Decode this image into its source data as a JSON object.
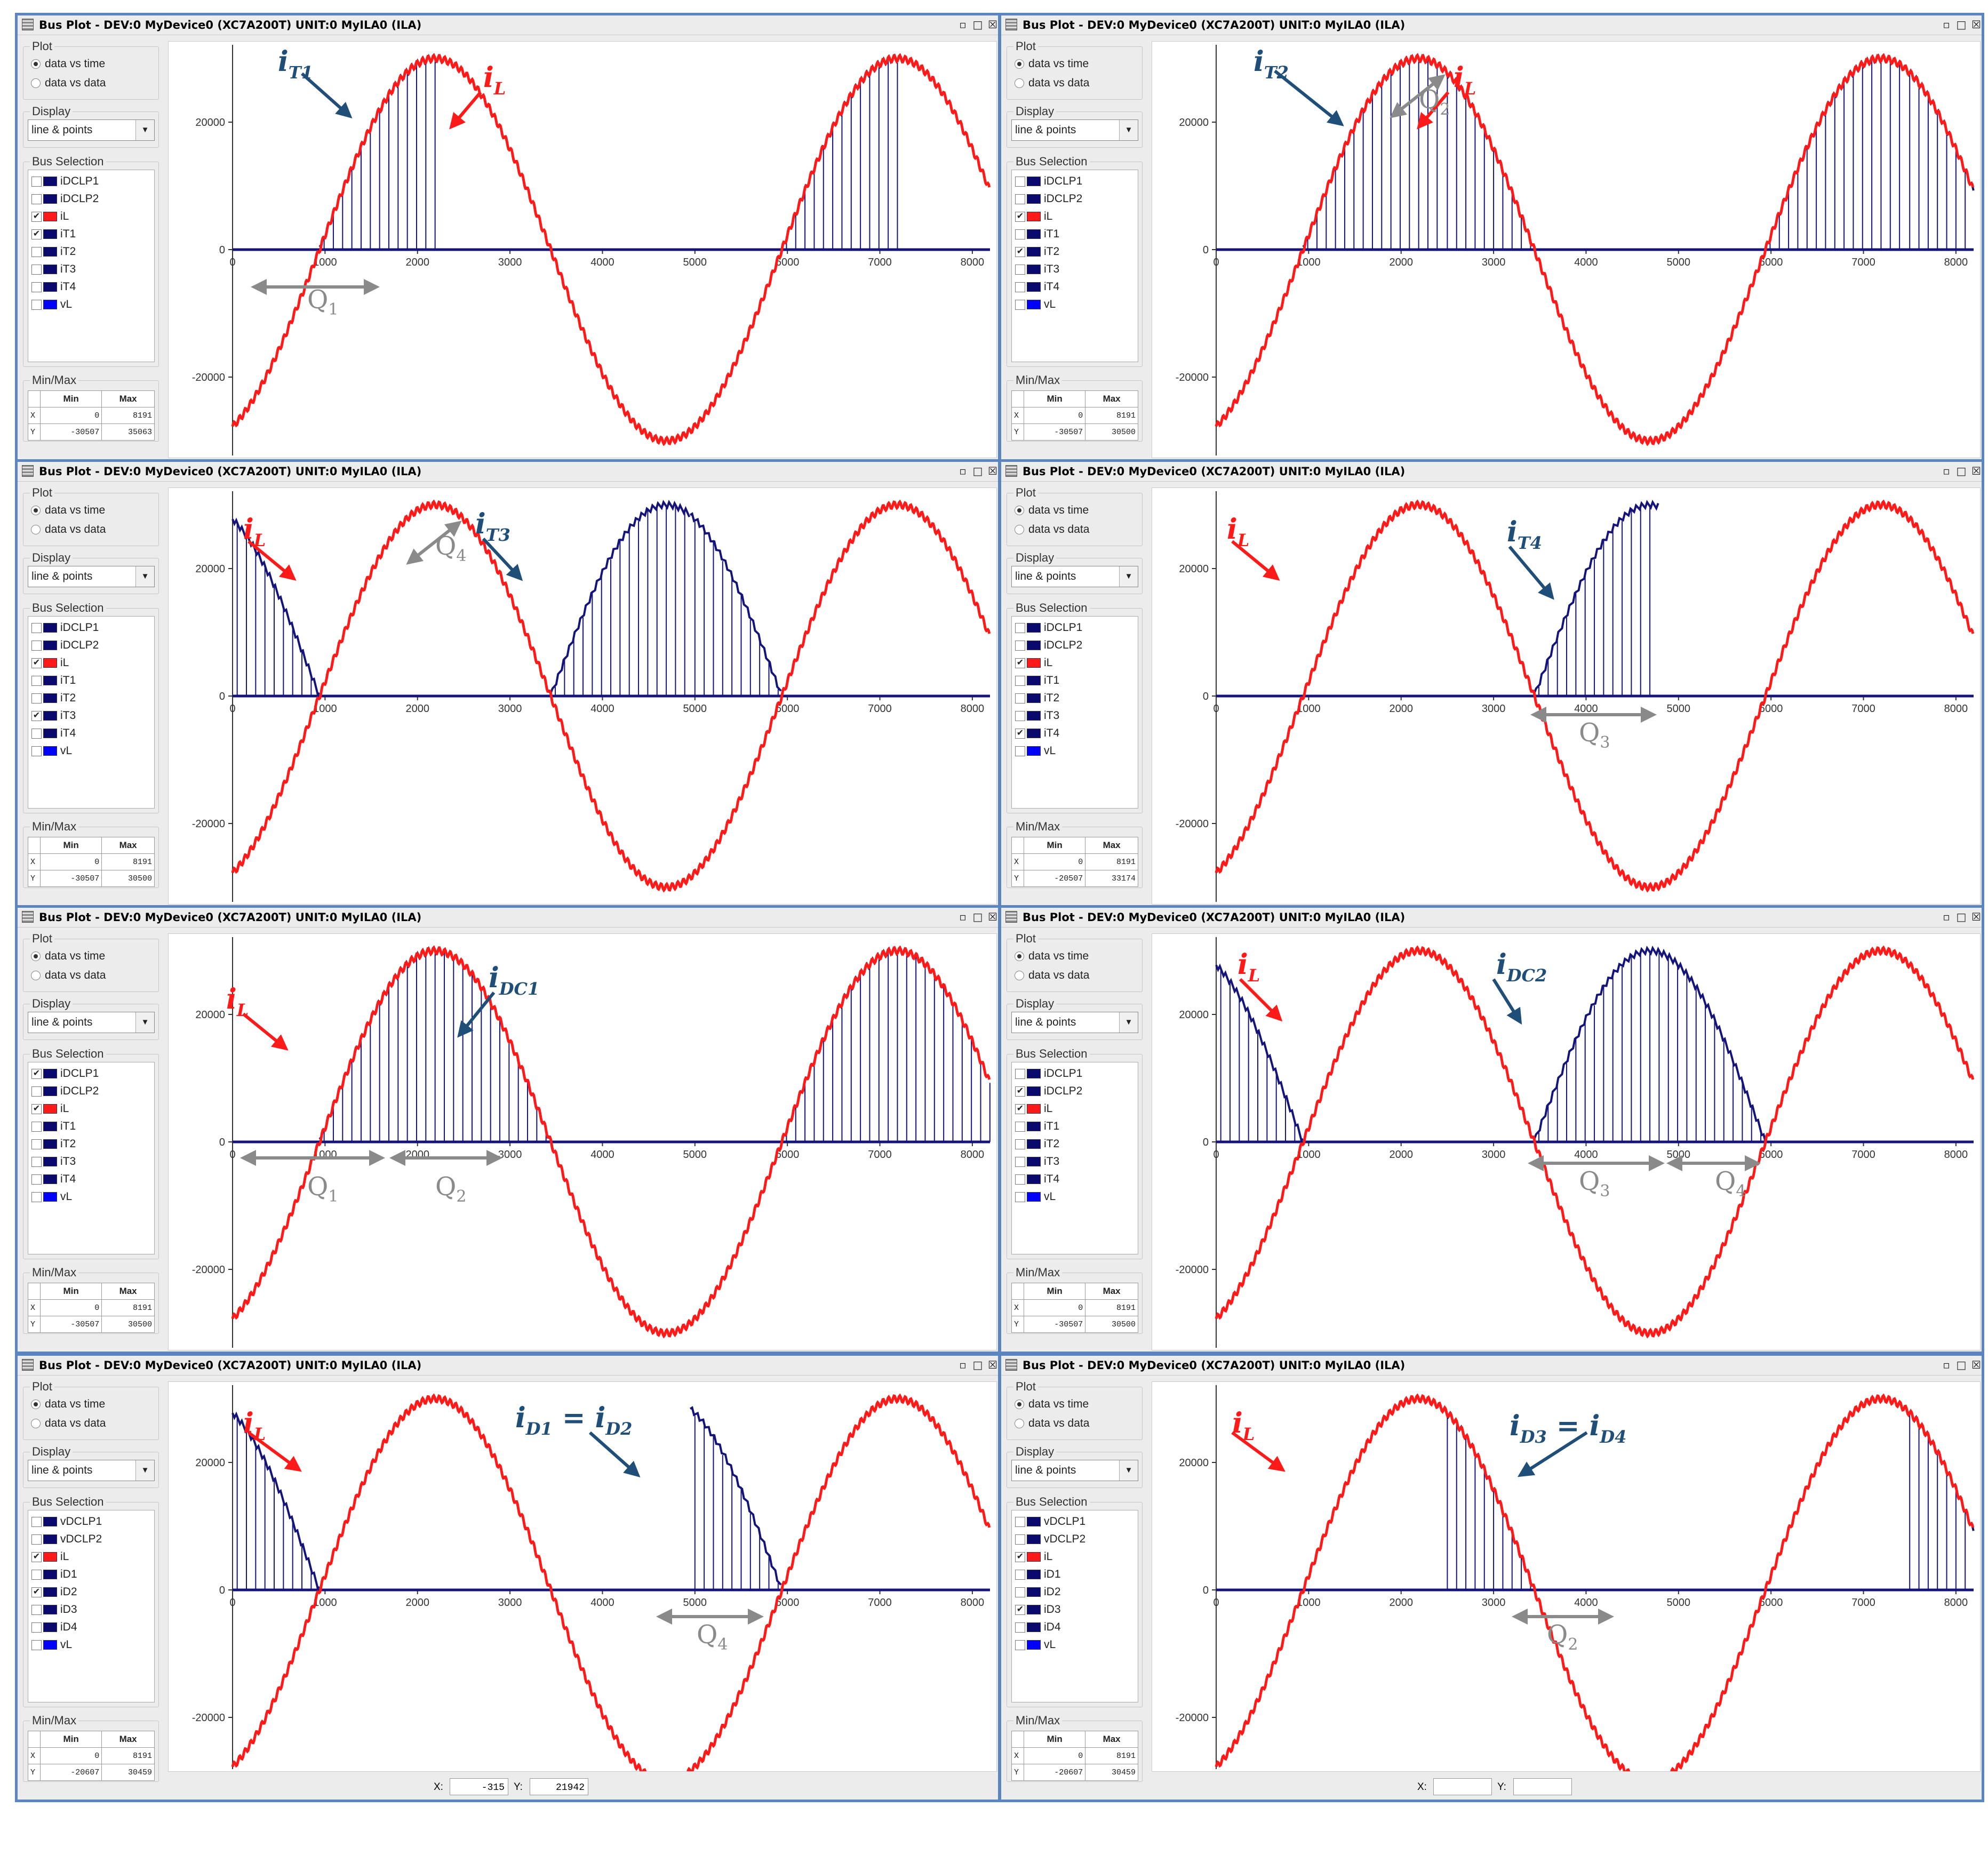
{
  "window_title": "Bus Plot - DEV:0 MyDevice0 (XC7A200T) UNIT:0 MyILA0 (ILA)",
  "title_controls": {
    "float": "▫",
    "maximize": "□",
    "close": "☒"
  },
  "colors": {
    "il": "#ff1a1a",
    "bus": "#14147a",
    "frame": "#5b85c0",
    "annotation_label": "#1f4e79",
    "q_arrow": "#8a8a8a"
  },
  "side": {
    "plot_group": "Plot",
    "radio_time": "data vs time",
    "radio_data": "data vs data",
    "display_group": "Display",
    "display_value": "line & points",
    "bus_group": "Bus Selection",
    "minmax_group": "Min/Max",
    "mm_head_min": "Min",
    "mm_head_max": "Max",
    "mm_row_x": "X",
    "mm_row_y": "Y"
  },
  "x_ticks": [
    "0",
    "1000",
    "2000",
    "3000",
    "4000",
    "5000",
    "6000",
    "7000",
    "8000"
  ],
  "y_ticks": [
    "20000",
    "0",
    "-20000"
  ],
  "panels": [
    {
      "buses": [
        [
          "iDCLP1",
          false,
          "#0a0a6e"
        ],
        [
          "iDCLP2",
          false,
          "#0a0a6e"
        ],
        [
          "iL",
          true,
          "#ff1a1a"
        ],
        [
          "iT1",
          true,
          "#0a0a6e"
        ],
        [
          "iT2",
          false,
          "#0a0a6e"
        ],
        [
          "iT3",
          false,
          "#0a0a6e"
        ],
        [
          "iT4",
          false,
          "#0a0a6e"
        ],
        [
          "vL",
          false,
          "#0000ff"
        ]
      ],
      "mm": {
        "xmin": "0",
        "xmax": "8191",
        "ymin": "-30507",
        "ymax": "35063"
      },
      "il_label": "i",
      "il_sub": "L",
      "bus_label": "i",
      "bus_sub": "T1",
      "q": [
        {
          "t": "Q",
          "s": "1"
        }
      ]
    },
    {
      "buses": [
        [
          "iDCLP1",
          false,
          "#0a0a6e"
        ],
        [
          "iDCLP2",
          false,
          "#0a0a6e"
        ],
        [
          "iL",
          true,
          "#ff1a1a"
        ],
        [
          "iT1",
          false,
          "#0a0a6e"
        ],
        [
          "iT2",
          true,
          "#0a0a6e"
        ],
        [
          "iT3",
          false,
          "#0a0a6e"
        ],
        [
          "iT4",
          false,
          "#0a0a6e"
        ],
        [
          "vL",
          false,
          "#0000ff"
        ]
      ],
      "mm": {
        "xmin": "0",
        "xmax": "8191",
        "ymin": "-30507",
        "ymax": "30500"
      },
      "il_label": "i",
      "il_sub": "L",
      "bus_label": "i",
      "bus_sub": "T2",
      "q": [
        {
          "t": "Q",
          "s": "2"
        }
      ]
    },
    {
      "buses": [
        [
          "iDCLP1",
          false,
          "#0a0a6e"
        ],
        [
          "iDCLP2",
          false,
          "#0a0a6e"
        ],
        [
          "iL",
          true,
          "#ff1a1a"
        ],
        [
          "iT1",
          false,
          "#0a0a6e"
        ],
        [
          "iT2",
          false,
          "#0a0a6e"
        ],
        [
          "iT3",
          true,
          "#0a0a6e"
        ],
        [
          "iT4",
          false,
          "#0a0a6e"
        ],
        [
          "vL",
          false,
          "#0000ff"
        ]
      ],
      "mm": {
        "xmin": "0",
        "xmax": "8191",
        "ymin": "-30507",
        "ymax": "30500"
      },
      "il_label": "i",
      "il_sub": "L",
      "bus_label": "i",
      "bus_sub": "T3",
      "q": [
        {
          "t": "Q",
          "s": "4"
        }
      ]
    },
    {
      "buses": [
        [
          "iDCLP1",
          false,
          "#0a0a6e"
        ],
        [
          "iDCLP2",
          false,
          "#0a0a6e"
        ],
        [
          "iL",
          true,
          "#ff1a1a"
        ],
        [
          "iT1",
          false,
          "#0a0a6e"
        ],
        [
          "iT2",
          false,
          "#0a0a6e"
        ],
        [
          "iT3",
          false,
          "#0a0a6e"
        ],
        [
          "iT4",
          true,
          "#0a0a6e"
        ],
        [
          "vL",
          false,
          "#0000ff"
        ]
      ],
      "mm": {
        "xmin": "0",
        "xmax": "8191",
        "ymin": "-20507",
        "ymax": "33174"
      },
      "il_label": "i",
      "il_sub": "L",
      "bus_label": "i",
      "bus_sub": "T4",
      "q": [
        {
          "t": "Q",
          "s": "3"
        }
      ]
    },
    {
      "buses": [
        [
          "iDCLP1",
          true,
          "#0a0a6e"
        ],
        [
          "iDCLP2",
          false,
          "#0a0a6e"
        ],
        [
          "iL",
          true,
          "#ff1a1a"
        ],
        [
          "iT1",
          false,
          "#0a0a6e"
        ],
        [
          "iT2",
          false,
          "#0a0a6e"
        ],
        [
          "iT3",
          false,
          "#0a0a6e"
        ],
        [
          "iT4",
          false,
          "#0a0a6e"
        ],
        [
          "vL",
          false,
          "#0000ff"
        ]
      ],
      "mm": {
        "xmin": "0",
        "xmax": "8191",
        "ymin": "-30507",
        "ymax": "30500"
      },
      "il_label": "i",
      "il_sub": "L",
      "bus_label": "i",
      "bus_sub": "DC1",
      "q": [
        {
          "t": "Q",
          "s": "1"
        },
        {
          "t": "Q",
          "s": "2"
        }
      ]
    },
    {
      "buses": [
        [
          "iDCLP1",
          false,
          "#0a0a6e"
        ],
        [
          "iDCLP2",
          true,
          "#0a0a6e"
        ],
        [
          "iL",
          true,
          "#ff1a1a"
        ],
        [
          "iT1",
          false,
          "#0a0a6e"
        ],
        [
          "iT2",
          false,
          "#0a0a6e"
        ],
        [
          "iT3",
          false,
          "#0a0a6e"
        ],
        [
          "iT4",
          false,
          "#0a0a6e"
        ],
        [
          "vL",
          false,
          "#0000ff"
        ]
      ],
      "mm": {
        "xmin": "0",
        "xmax": "8191",
        "ymin": "-30507",
        "ymax": "30500"
      },
      "il_label": "i",
      "il_sub": "L",
      "bus_label": "i",
      "bus_sub": "DC2",
      "q": [
        {
          "t": "Q",
          "s": "3"
        },
        {
          "t": "Q",
          "s": "4"
        }
      ]
    },
    {
      "buses": [
        [
          "vDCLP1",
          false,
          "#0a0a6e"
        ],
        [
          "vDCLP2",
          false,
          "#0a0a6e"
        ],
        [
          "iL",
          true,
          "#ff1a1a"
        ],
        [
          "iD1",
          false,
          "#0a0a6e"
        ],
        [
          "iD2",
          true,
          "#0a0a6e"
        ],
        [
          "iD3",
          false,
          "#0a0a6e"
        ],
        [
          "iD4",
          false,
          "#0a0a6e"
        ],
        [
          "vL",
          false,
          "#0000ff"
        ]
      ],
      "mm": {
        "xmin": "0",
        "xmax": "8191",
        "ymin": "-20607",
        "ymax": "30459"
      },
      "il_label": "i",
      "il_sub": "L",
      "bus_label": "i",
      "bus_sub": "D1",
      "bus_eq": " = ",
      "bus_label2": "i",
      "bus_sub2": "D2",
      "q": [
        {
          "t": "Q",
          "s": "4"
        }
      ],
      "status": {
        "x_label": "X:",
        "x_value": "-315",
        "y_label": "Y:",
        "y_value": "21942"
      }
    },
    {
      "buses": [
        [
          "vDCLP1",
          false,
          "#0a0a6e"
        ],
        [
          "vDCLP2",
          false,
          "#0a0a6e"
        ],
        [
          "iL",
          true,
          "#ff1a1a"
        ],
        [
          "iD1",
          false,
          "#0a0a6e"
        ],
        [
          "iD2",
          false,
          "#0a0a6e"
        ],
        [
          "iD3",
          true,
          "#0a0a6e"
        ],
        [
          "iD4",
          false,
          "#0a0a6e"
        ],
        [
          "vL",
          false,
          "#0000ff"
        ]
      ],
      "mm": {
        "xmin": "0",
        "xmax": "8191",
        "ymin": "-20607",
        "ymax": "30459"
      },
      "il_label": "i",
      "il_sub": "L",
      "bus_label": "i",
      "bus_sub": "D3",
      "bus_eq": " = ",
      "bus_label2": "i",
      "bus_sub2": "D4",
      "q": [
        {
          "t": "Q",
          "s": "2"
        }
      ],
      "status": {
        "x_label": "X:",
        "x_value": "",
        "y_label": "Y:",
        "y_value": ""
      }
    }
  ],
  "chart_data": [
    {
      "type": "line",
      "xlim": [
        0,
        8191
      ],
      "ylim": [
        -30507,
        35063
      ],
      "series": [
        {
          "name": "iL",
          "amplitude": 30000,
          "period": 5000,
          "zero_crossing": 940
        },
        {
          "name": "iT1",
          "segments": [
            [
              940,
              2290
            ],
            [
              5940,
              7290
            ]
          ]
        }
      ]
    },
    {
      "type": "line",
      "xlim": [
        0,
        8191
      ],
      "ylim": [
        -30507,
        30500
      ],
      "series": [
        {
          "name": "iL",
          "amplitude": 30000,
          "period": 5000,
          "zero_crossing": 940
        },
        {
          "name": "iT2",
          "segments": [
            [
              940,
              2450
            ],
            [
              2450,
              3440
            ],
            [
              5940,
              7450
            ],
            [
              7450,
              8191
            ]
          ]
        }
      ]
    },
    {
      "type": "line",
      "xlim": [
        0,
        8191
      ],
      "ylim": [
        -30507,
        30500
      ],
      "series": [
        {
          "name": "iL",
          "amplitude": 30000,
          "period": 5000,
          "zero_crossing": 940
        },
        {
          "name": "iT3",
          "segments": [
            [
              0,
              940
            ],
            [
              3440,
              4950
            ],
            [
              4950,
              5940
            ]
          ]
        }
      ]
    },
    {
      "type": "line",
      "xlim": [
        0,
        8191
      ],
      "ylim": [
        -20507,
        33174
      ],
      "series": [
        {
          "name": "iL",
          "amplitude": 30000,
          "period": 5000,
          "zero_crossing": 940
        },
        {
          "name": "iT4",
          "segments": [
            [
              3440,
              4790
            ]
          ]
        }
      ]
    },
    {
      "type": "line",
      "xlim": [
        0,
        8191
      ],
      "ylim": [
        -30507,
        30500
      ],
      "series": [
        {
          "name": "iL",
          "amplitude": 30000,
          "period": 5000,
          "zero_crossing": 940
        },
        {
          "name": "iDCLP1",
          "segments": [
            [
              940,
              3440
            ],
            [
              5940,
              8191
            ]
          ]
        }
      ]
    },
    {
      "type": "line",
      "xlim": [
        0,
        8191
      ],
      "ylim": [
        -30507,
        30500
      ],
      "series": [
        {
          "name": "iL",
          "amplitude": 30000,
          "period": 5000,
          "zero_crossing": 940
        },
        {
          "name": "iDCLP2",
          "segments": [
            [
              0,
              940
            ],
            [
              3440,
              5940
            ]
          ]
        }
      ]
    },
    {
      "type": "line",
      "xlim": [
        0,
        8191
      ],
      "ylim": [
        -20607,
        30459
      ],
      "series": [
        {
          "name": "iL",
          "amplitude": 30000,
          "period": 5000,
          "zero_crossing": 940
        },
        {
          "name": "iD2",
          "segments": [
            [
              0,
              940
            ],
            [
              4950,
              5940
            ]
          ]
        }
      ]
    },
    {
      "type": "line",
      "xlim": [
        0,
        8191
      ],
      "ylim": [
        -20607,
        30459
      ],
      "series": [
        {
          "name": "iL",
          "amplitude": 30000,
          "period": 5000,
          "zero_crossing": 940
        },
        {
          "name": "iD3",
          "segments": [
            [
              2450,
              3440
            ],
            [
              7450,
              8191
            ]
          ]
        }
      ]
    }
  ]
}
